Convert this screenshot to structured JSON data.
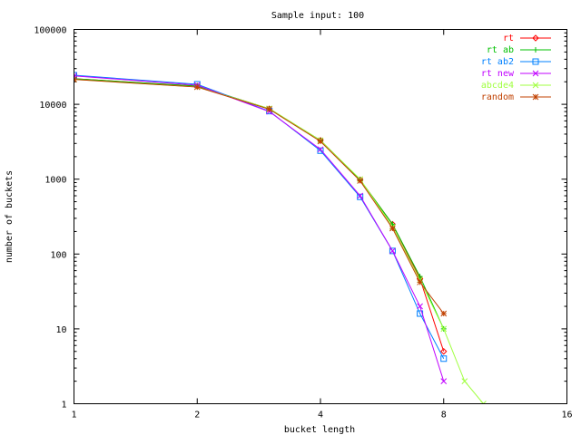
{
  "chart_data": {
    "type": "line",
    "title": "Sample input: 100",
    "xlabel": "bucket length",
    "ylabel": "number of buckets",
    "xscale": "log2",
    "yscale": "log10",
    "xlim": [
      1,
      16
    ],
    "ylim": [
      1,
      100000
    ],
    "xticks": [
      1,
      2,
      4,
      8,
      16
    ],
    "yticks": [
      1,
      10,
      100,
      1000,
      10000,
      100000
    ],
    "xtick_labels": [
      "1",
      "2",
      "4",
      "8",
      "16"
    ],
    "ytick_labels": [
      "1",
      "10",
      "100",
      "1000",
      "10000",
      "100000"
    ],
    "grid": false,
    "legend_position": "top-right",
    "series": [
      {
        "name": "rt",
        "color": "#ff0000",
        "marker": "diamond",
        "x": [
          1,
          2,
          3,
          4,
          5,
          6,
          7,
          8
        ],
        "y": [
          22000,
          17500,
          8700,
          3300,
          980,
          250,
          47,
          5
        ]
      },
      {
        "name": "rt ab",
        "color": "#00c000",
        "marker": "plus",
        "x": [
          1,
          2,
          3,
          4,
          5,
          6,
          7,
          8
        ],
        "y": [
          22000,
          17500,
          8700,
          3300,
          980,
          250,
          50,
          10
        ]
      },
      {
        "name": "rt ab2",
        "color": "#0080ff",
        "marker": "box",
        "x": [
          1,
          2,
          3,
          4,
          5,
          6,
          7,
          8
        ],
        "y": [
          24500,
          18500,
          8100,
          2400,
          580,
          110,
          16,
          4
        ]
      },
      {
        "name": "rt new",
        "color": "#c000ff",
        "marker": "cross",
        "x": [
          1,
          2,
          3,
          4,
          5,
          6,
          7,
          8
        ],
        "y": [
          24000,
          18000,
          8000,
          2500,
          600,
          110,
          20,
          2
        ]
      },
      {
        "name": "abcde4",
        "color": "#a0ff40",
        "marker": "x-cross",
        "x": [
          1,
          2,
          3,
          4,
          5,
          6,
          7,
          8,
          9,
          10
        ],
        "y": [
          21500,
          17000,
          8800,
          3300,
          1000,
          230,
          45,
          10,
          2,
          1
        ]
      },
      {
        "name": "random",
        "color": "#c04000",
        "marker": "star",
        "x": [
          1,
          2,
          3,
          4,
          5,
          6,
          7,
          8
        ],
        "y": [
          21500,
          17000,
          8600,
          3200,
          950,
          220,
          42,
          16
        ]
      }
    ]
  }
}
